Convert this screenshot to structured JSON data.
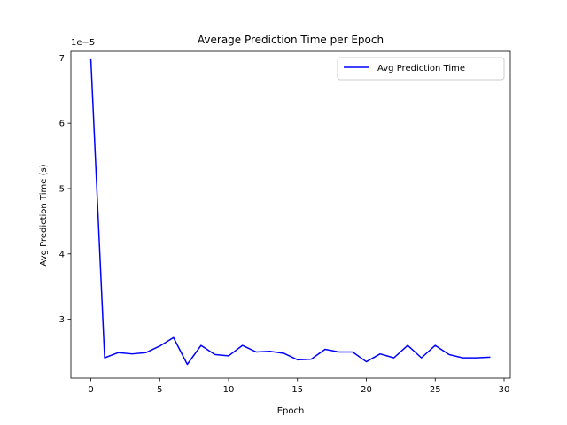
{
  "chart_data": {
    "type": "line",
    "title": "Average Prediction Time per Epoch",
    "xlabel": "Epoch",
    "ylabel": "Avg Prediction Time (s)",
    "y_offset_label": "1e−5",
    "x_ticks": [
      0,
      5,
      10,
      15,
      20,
      25,
      30
    ],
    "y_ticks": [
      3,
      4,
      5,
      6,
      7
    ],
    "x_tick_labels": [
      "0",
      "5",
      "10",
      "15",
      "20",
      "25",
      "30"
    ],
    "y_tick_labels": [
      "3",
      "4",
      "5",
      "6",
      "7"
    ],
    "xlim": [
      -1.45,
      30.45
    ],
    "ylim": [
      2.1,
      7.1
    ],
    "y_scale_factor": 1e-05,
    "grid": false,
    "legend_placement": "top-right",
    "series": [
      {
        "name": "Avg Prediction Time",
        "color": "#0000ff",
        "x": [
          0,
          1,
          2,
          3,
          4,
          5,
          6,
          7,
          8,
          9,
          10,
          11,
          12,
          13,
          14,
          15,
          16,
          17,
          18,
          19,
          20,
          21,
          22,
          23,
          24,
          25,
          26,
          27,
          28,
          29
        ],
        "y": [
          6.98,
          2.41,
          2.49,
          2.47,
          2.49,
          2.59,
          2.72,
          2.31,
          2.6,
          2.46,
          2.44,
          2.6,
          2.5,
          2.51,
          2.48,
          2.38,
          2.39,
          2.54,
          2.5,
          2.5,
          2.35,
          2.47,
          2.41,
          2.6,
          2.41,
          2.6,
          2.46,
          2.41,
          2.41,
          2.42
        ]
      }
    ]
  }
}
